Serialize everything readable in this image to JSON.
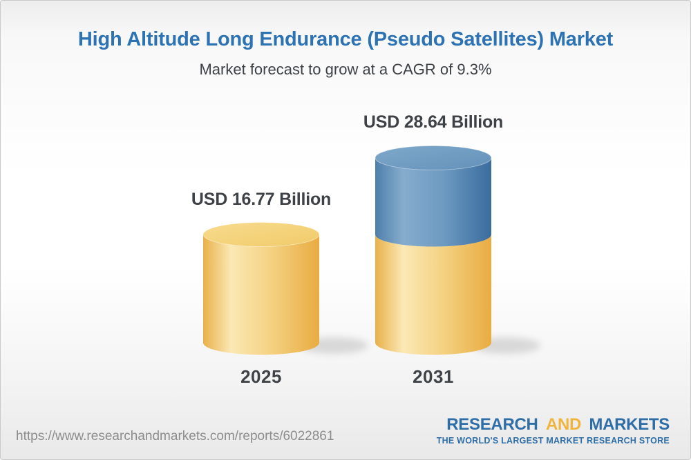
{
  "header": {
    "title": "High Altitude Long Endurance (Pseudo Satellites) Market",
    "subtitle": "Market forecast to grow at a CAGR of 9.3%"
  },
  "chart_data": {
    "type": "bar",
    "subtype": "3d-cylinder",
    "title": "High Altitude Long Endurance (Pseudo Satellites) Market",
    "subtitle": "Market forecast to grow at a CAGR of 9.3%",
    "cagr_percent": 9.3,
    "unit": "USD Billion",
    "categories": [
      "2025",
      "2031"
    ],
    "values": [
      16.77,
      28.64
    ],
    "value_labels": [
      "USD 16.77 Billion",
      "USD 28.64 Billion"
    ],
    "bars": [
      {
        "category": "2025",
        "label": "USD 16.77 Billion",
        "segments": [
          {
            "name": "market-size-2025",
            "value": 16.77,
            "color_key": "yellow"
          }
        ]
      },
      {
        "category": "2031",
        "label": "USD 28.64 Billion",
        "segments": [
          {
            "name": "base-2025",
            "value": 16.77,
            "color_key": "yellow"
          },
          {
            "name": "growth-2025-to-2031",
            "value": 11.87,
            "color_key": "blue"
          }
        ]
      }
    ],
    "colors": {
      "yellow_body": [
        "#E8B14A",
        "#FBE8B4",
        "#F4D283",
        "#E9AC41"
      ],
      "yellow_top": [
        "#F7DB8E",
        "#F1CB69"
      ],
      "blue_body": [
        "#4E7FAB",
        "#85ACCD",
        "#6E9BC1",
        "#3A6C9E"
      ],
      "blue_top": [
        "#7EA9CA",
        "#6491BA"
      ]
    },
    "legend": false,
    "axes": {
      "x_labels": [
        "2025",
        "2031"
      ],
      "y_axis_visible": false,
      "gridlines": false
    }
  },
  "footer": {
    "url": "https://www.researchandmarkets.com/reports/6022861",
    "logo": {
      "word1": "RESEARCH",
      "word2": "AND",
      "word3": "MARKETS",
      "tagline": "THE WORLD'S LARGEST MARKET RESEARCH STORE"
    }
  },
  "theme": {
    "title_color": "#2D73B4",
    "text_color": "#3E4247",
    "url_color": "#8C8C8C",
    "logo_blue": "#2E6DA6",
    "logo_gold": "#F0B43C"
  }
}
